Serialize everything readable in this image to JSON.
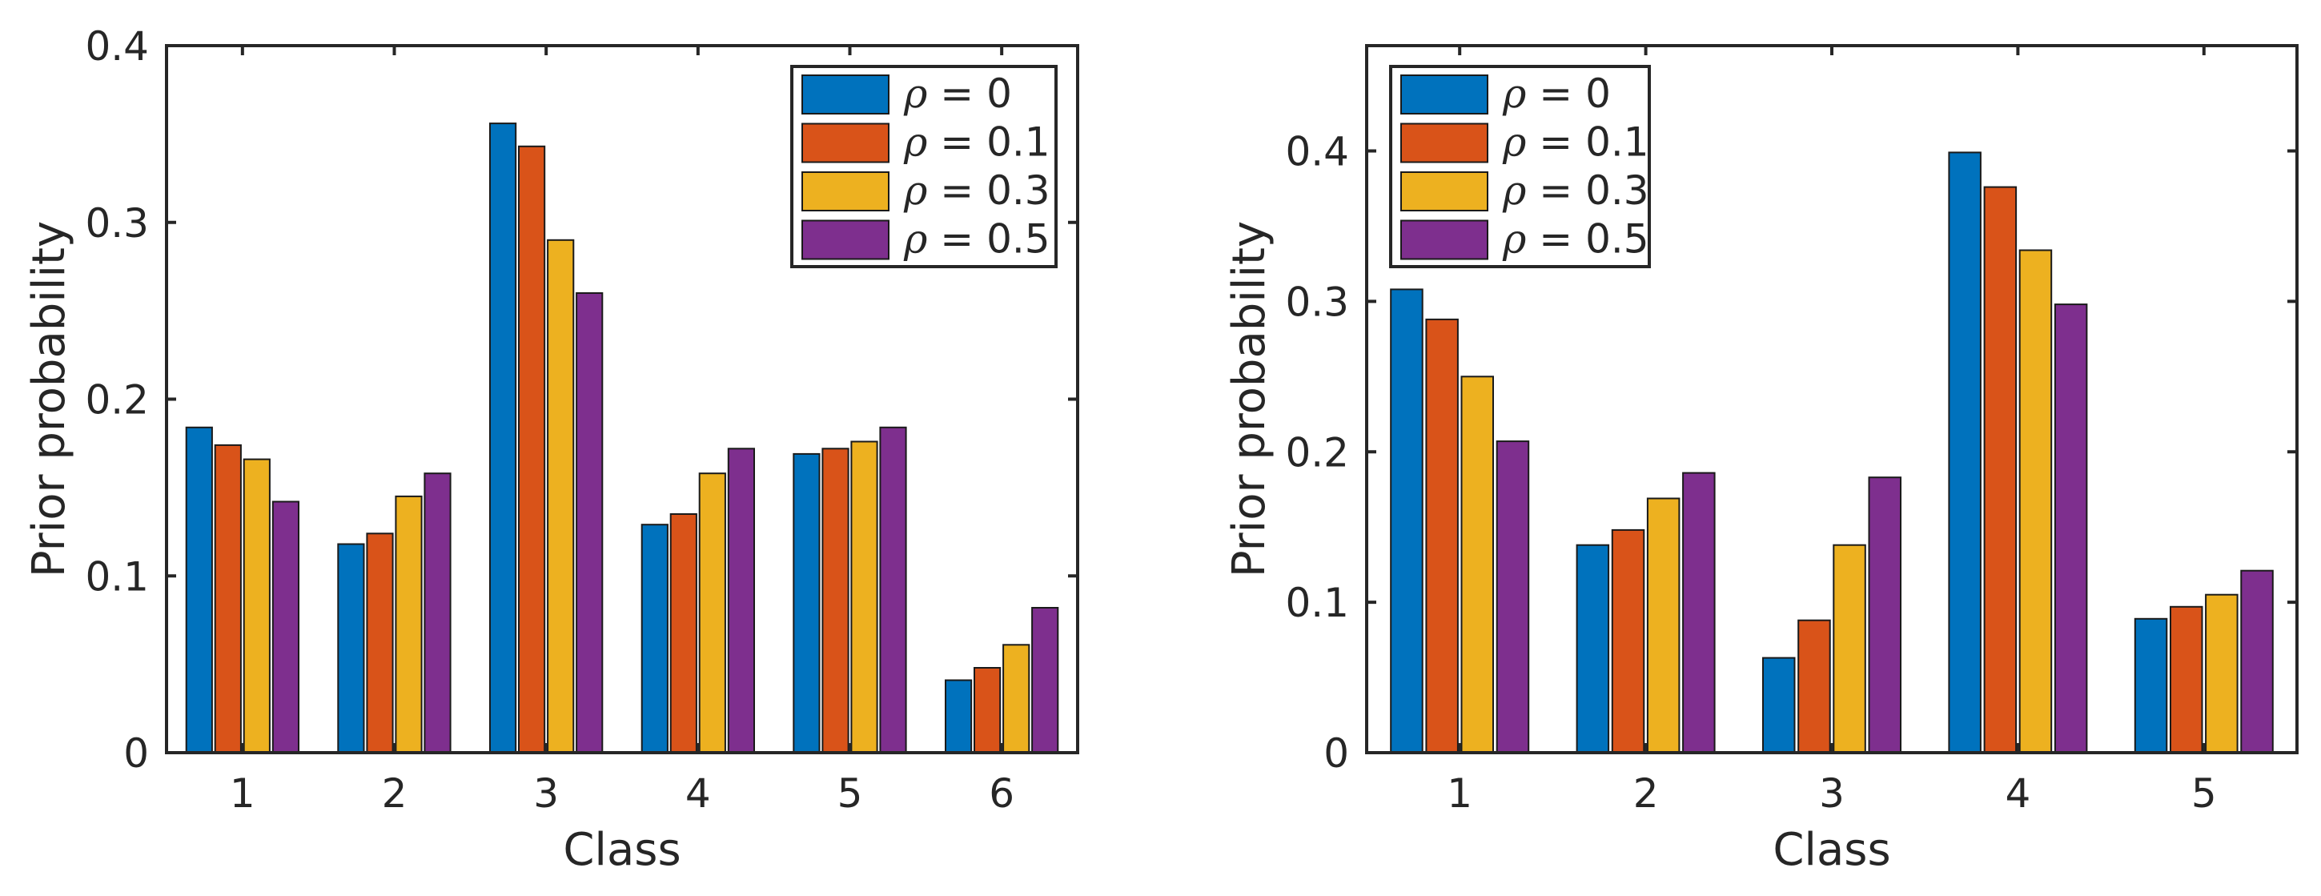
{
  "chart_data": [
    {
      "type": "bar",
      "title": "",
      "xlabel": "Class",
      "ylabel": "Prior probability",
      "categories": [
        "1",
        "2",
        "3",
        "4",
        "5",
        "6"
      ],
      "ylim": [
        0,
        0.4
      ],
      "yticks": [
        0,
        0.1,
        0.2,
        0.3,
        0.4
      ],
      "ytick_labels": [
        "0",
        "0.1",
        "0.2",
        "0.3",
        "0.4"
      ],
      "grid": false,
      "legend_position": "top-right",
      "series": [
        {
          "name": "ρ = 0",
          "symbol": "ρ",
          "value_text": "= 0",
          "color": "#0072BD",
          "values": [
            0.184,
            0.118,
            0.356,
            0.129,
            0.169,
            0.041
          ]
        },
        {
          "name": "ρ = 0.1",
          "symbol": "ρ",
          "value_text": "= 0.1",
          "color": "#D95319",
          "values": [
            0.174,
            0.124,
            0.343,
            0.135,
            0.172,
            0.048
          ]
        },
        {
          "name": "ρ = 0.3",
          "symbol": "ρ",
          "value_text": "= 0.3",
          "color": "#EDB120",
          "values": [
            0.166,
            0.145,
            0.29,
            0.158,
            0.176,
            0.061
          ]
        },
        {
          "name": "ρ = 0.5",
          "symbol": "ρ",
          "value_text": "= 0.5",
          "color": "#7E2F8E",
          "values": [
            0.142,
            0.158,
            0.26,
            0.172,
            0.184,
            0.082
          ]
        }
      ]
    },
    {
      "type": "bar",
      "title": "",
      "xlabel": "Class",
      "ylabel": "Prior probability",
      "categories": [
        "1",
        "2",
        "3",
        "4",
        "5"
      ],
      "ylim": [
        0,
        0.47
      ],
      "yticks": [
        0,
        0.1,
        0.2,
        0.3,
        0.4
      ],
      "ytick_labels": [
        "0",
        "0.1",
        "0.2",
        "0.3",
        "0.4"
      ],
      "grid": false,
      "legend_position": "top-left",
      "series": [
        {
          "name": "ρ = 0",
          "symbol": "ρ",
          "value_text": "= 0",
          "color": "#0072BD",
          "values": [
            0.308,
            0.138,
            0.063,
            0.399,
            0.089
          ]
        },
        {
          "name": "ρ = 0.1",
          "symbol": "ρ",
          "value_text": "= 0.1",
          "color": "#D95319",
          "values": [
            0.288,
            0.148,
            0.088,
            0.376,
            0.097
          ]
        },
        {
          "name": "ρ = 0.3",
          "symbol": "ρ",
          "value_text": "= 0.3",
          "color": "#EDB120",
          "values": [
            0.25,
            0.169,
            0.138,
            0.334,
            0.105
          ]
        },
        {
          "name": "ρ = 0.5",
          "symbol": "ρ",
          "value_text": "= 0.5",
          "color": "#7E2F8E",
          "values": [
            0.207,
            0.186,
            0.183,
            0.298,
            0.121
          ]
        }
      ]
    }
  ]
}
